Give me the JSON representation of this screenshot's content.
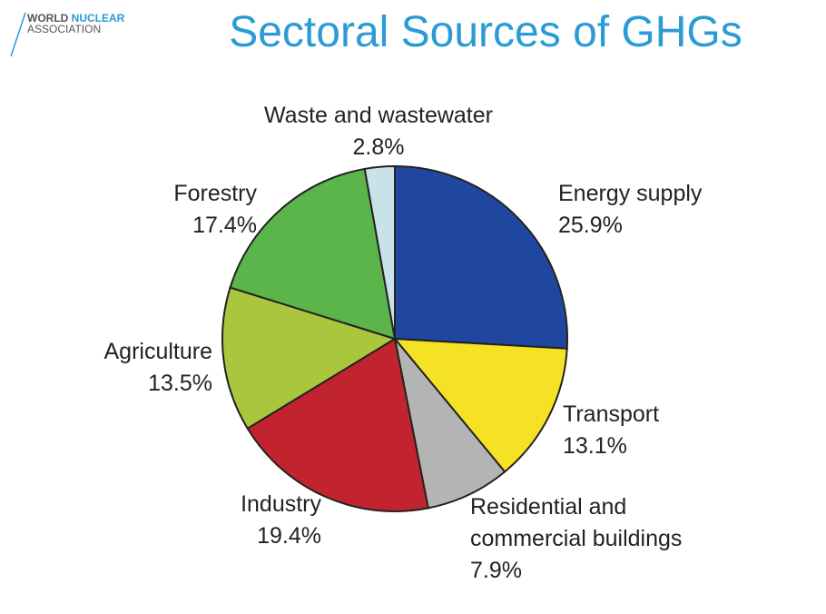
{
  "logo": {
    "word1": "WORLD",
    "word2": "NUCLEAR",
    "line2": "ASSOCIATION"
  },
  "chart_data": {
    "type": "pie",
    "title": "Sectoral Sources of GHGs",
    "categories": [
      "Energy supply",
      "Transport",
      "Residential and commercial buildings",
      "Industry",
      "Agriculture",
      "Forestry",
      "Waste and wastewater"
    ],
    "values": [
      25.9,
      13.1,
      7.9,
      19.4,
      13.5,
      17.4,
      2.8
    ],
    "value_labels": [
      "25.9%",
      "13.1%",
      "7.9%",
      "19.4%",
      "13.5%",
      "17.4%",
      "2.8%"
    ],
    "colors": [
      "#1f47a0",
      "#f6e225",
      "#b4b4b4",
      "#c1242f",
      "#aac63c",
      "#5cb54b",
      "#c9e2e9"
    ]
  }
}
